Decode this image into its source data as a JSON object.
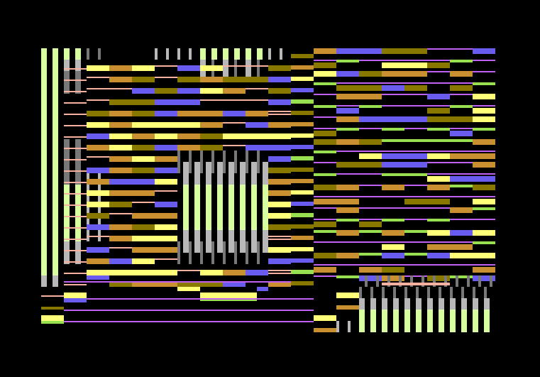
{
  "palette": {
    "background": "#000000",
    "light_green": "#d8ffa0",
    "green": "#98e050",
    "light_gray": "#b8b8b8",
    "dark_gray": "#787878",
    "pink": "#f8b0a0",
    "olive": "#887800",
    "orange": "#c89030",
    "yellow": "#ffff78",
    "blue": "#6b5cf0",
    "purple": "#c060f0"
  }
}
